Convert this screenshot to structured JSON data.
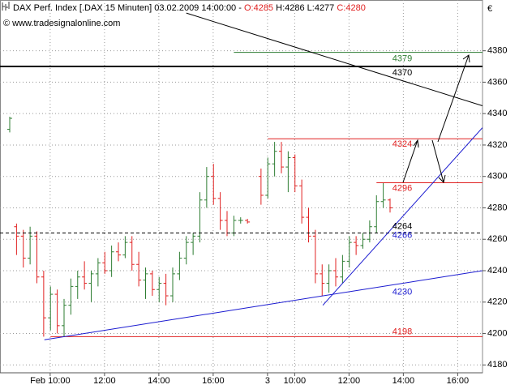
{
  "chart_data": {
    "type": "ohlc",
    "header": {
      "title": "DAX Perf. Index [.DAX  15 Minuten] 03.02.2009 14:00:00 -",
      "open": "O:4285",
      "high_low": "H:4286 L:4277",
      "close": "C:4280"
    },
    "watermark": "© www.tradesignalonline.com",
    "currency": "€",
    "categories": [
      null,
      null,
      null,
      null,
      null,
      "Feb 10:00",
      null,
      null,
      null,
      null,
      null,
      null,
      null,
      "12:00",
      null,
      null,
      null,
      null,
      null,
      null,
      null,
      "14:00",
      null,
      null,
      null,
      null,
      null,
      null,
      null,
      "16:00",
      null,
      null,
      null,
      null,
      null,
      null,
      null,
      "3",
      null,
      null,
      null,
      "10:00",
      null,
      null,
      null,
      null,
      null,
      null,
      null,
      "12:00",
      null,
      null,
      null,
      null,
      null,
      null,
      null,
      "14:00",
      null,
      null,
      null,
      null,
      null,
      null,
      null,
      "16:00",
      null,
      null,
      null,
      null
    ],
    "open": [
      4330,
      4268,
      4262,
      4248,
      4262,
      4236,
      4210,
      4225,
      4205,
      4218,
      4230,
      4236,
      4232,
      4238,
      4245,
      4240,
      4252,
      4250,
      4258,
      4244,
      4234,
      4238,
      4228,
      4232,
      4224,
      4238,
      4248,
      4258,
      4262,
      4285,
      4300,
      4286,
      4272,
      4264,
      4272,
      4272,
      null,
      4300,
      4288,
      4308,
      4316,
      4306,
      4312,
      4294,
      4274,
      4262,
      4238,
      4232,
      4240,
      4236,
      4246,
      4258,
      4256,
      4260,
      4268,
      4284,
      4285,
      null,
      null,
      null,
      null,
      null,
      null,
      null,
      null,
      null,
      null,
      null,
      null,
      null
    ],
    "high": [
      4338,
      4270,
      4266,
      4268,
      4265,
      4240,
      4230,
      4228,
      4222,
      4235,
      4240,
      4246,
      4240,
      4248,
      4252,
      4256,
      4258,
      4262,
      4262,
      4252,
      4242,
      4240,
      4236,
      4238,
      4242,
      4252,
      4262,
      4264,
      4290,
      4306,
      4308,
      4290,
      4278,
      4275,
      4274,
      4273,
      null,
      4305,
      4312,
      4322,
      4322,
      4316,
      4314,
      4298,
      4280,
      4266,
      4244,
      4244,
      4248,
      4250,
      4262,
      4262,
      4264,
      4272,
      4288,
      4296,
      4286,
      null,
      null,
      null,
      null,
      null,
      null,
      null,
      null,
      null,
      null,
      null,
      null,
      null
    ],
    "low": [
      4328,
      4250,
      4242,
      4244,
      4232,
      4198,
      4202,
      4200,
      4198,
      4212,
      4222,
      4228,
      4220,
      4230,
      4238,
      4236,
      4246,
      4248,
      4240,
      4230,
      4222,
      4224,
      4220,
      4218,
      4220,
      4234,
      4244,
      4250,
      4258,
      4280,
      4282,
      4266,
      4262,
      4262,
      4270,
      4270,
      null,
      4282,
      4286,
      4300,
      4302,
      4290,
      4290,
      4270,
      4258,
      4232,
      4224,
      4226,
      4230,
      4232,
      4242,
      4250,
      4254,
      4258,
      4264,
      4280,
      4277,
      null,
      null,
      null,
      null,
      null,
      null,
      null,
      null,
      null,
      null,
      null,
      null,
      null
    ],
    "close": [
      4337,
      4262,
      4248,
      4262,
      4236,
      4210,
      4225,
      4205,
      4218,
      4230,
      4236,
      4232,
      4238,
      4245,
      4240,
      4252,
      4250,
      4258,
      4244,
      4234,
      4238,
      4228,
      4232,
      4224,
      4238,
      4248,
      4258,
      4262,
      4285,
      4300,
      4286,
      4272,
      4264,
      4272,
      4272,
      4271,
      null,
      4288,
      4308,
      4316,
      4306,
      4312,
      4294,
      4274,
      4262,
      4238,
      4232,
      4240,
      4236,
      4246,
      4258,
      4256,
      4260,
      4268,
      4284,
      4285,
      4280,
      null,
      null,
      null,
      null,
      null,
      null,
      null,
      null,
      null,
      null,
      null,
      null,
      null
    ],
    "up_color": "#2e7d32",
    "down_color": "#e02020",
    "ylim": [
      4175,
      4402
    ],
    "yticks": [
      4180,
      4200,
      4220,
      4240,
      4260,
      4280,
      4300,
      4320,
      4340,
      4360,
      4380
    ],
    "grid": true,
    "levels": [
      {
        "value": 4379,
        "color": "#2e7d32",
        "start": 33
      },
      {
        "value": 4370,
        "color": "#000000"
      },
      {
        "value": 4324,
        "color": "#e02020",
        "start": 38
      },
      {
        "value": 4296,
        "color": "#e02020",
        "start": 54
      },
      {
        "value": 4264,
        "color": "#000000",
        "dashed": true
      },
      {
        "value": 4198,
        "color": "#e02020",
        "start": 6
      }
    ],
    "trendlines": [
      {
        "color": "#1a1ad0",
        "x": [
          5.1,
          69.6
        ],
        "y": [
          4196,
          4240
        ],
        "value": 4230
      },
      {
        "color": "#1a1ad0",
        "x": [
          46.1,
          69.6
        ],
        "y": [
          4218,
          4331
        ],
        "value": 4266
      },
      {
        "color": "#000000",
        "x": [
          26,
          69.6
        ],
        "y": [
          4404,
          4345
        ]
      }
    ]
  }
}
